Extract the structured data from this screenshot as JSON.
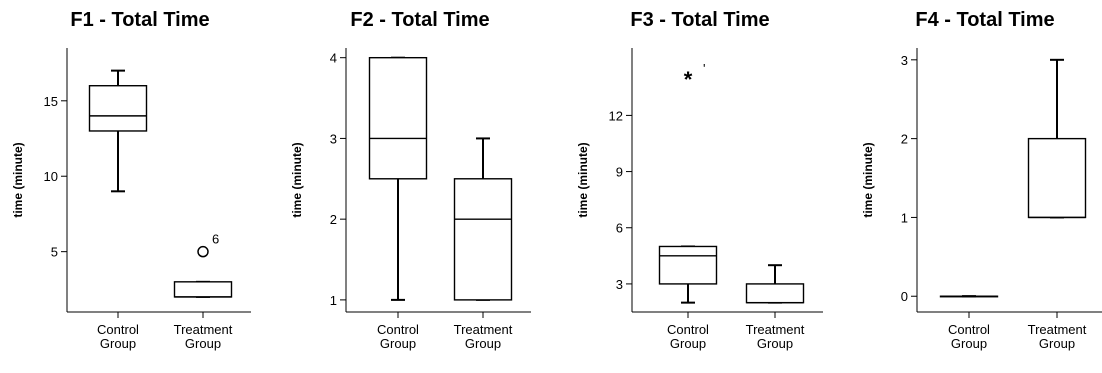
{
  "chart_data": [
    {
      "type": "box",
      "title": "F1 - Total Time",
      "ylabel": "time (minute)",
      "categories": [
        "Control Group",
        "Treatment Group"
      ],
      "ylim": [
        1,
        18.5
      ],
      "yticks": [
        5,
        10,
        15
      ],
      "boxes": [
        {
          "category": "Control Group",
          "min": 9,
          "q1": 13,
          "median": 14,
          "q3": 16,
          "max": 17,
          "outliers": []
        },
        {
          "category": "Treatment Group",
          "min": 2,
          "q1": 2,
          "median": 2,
          "q3": 3,
          "max": 3,
          "outliers": [
            {
              "value": 5,
              "marker": "circle",
              "label": "6"
            }
          ]
        }
      ]
    },
    {
      "type": "box",
      "title": "F2 - Total Time",
      "ylabel": "time (minute)",
      "categories": [
        "Control Group",
        "Treatment Group"
      ],
      "ylim": [
        0.85,
        4.12
      ],
      "yticks": [
        1,
        2,
        3,
        4
      ],
      "boxes": [
        {
          "category": "Control Group",
          "min": 1,
          "q1": 2.5,
          "median": 3,
          "q3": 4,
          "max": 4,
          "outliers": []
        },
        {
          "category": "Treatment Group",
          "min": 1,
          "q1": 1,
          "median": 2,
          "q3": 2.5,
          "max": 3,
          "outliers": []
        }
      ]
    },
    {
      "type": "box",
      "title": "F3 - Total Time",
      "ylabel": "time (minute)",
      "categories": [
        "Control Group",
        "Treatment Group"
      ],
      "ylim": [
        1.5,
        15.6
      ],
      "yticks": [
        3,
        6,
        9,
        12
      ],
      "boxes": [
        {
          "category": "Control Group",
          "min": 2,
          "q1": 3,
          "median": 4.5,
          "q3": 5,
          "max": 5,
          "outliers": [
            {
              "value": 14,
              "marker": "star",
              "label": "'"
            }
          ]
        },
        {
          "category": "Treatment Group",
          "min": 2,
          "q1": 2,
          "median": 2,
          "q3": 3,
          "max": 4,
          "outliers": []
        }
      ]
    },
    {
      "type": "box",
      "title": "F4 - Total Time",
      "ylabel": "time (minute)",
      "categories": [
        "Control Group",
        "Treatment Group"
      ],
      "ylim": [
        -0.2,
        3.15
      ],
      "yticks": [
        0,
        1,
        2,
        3
      ],
      "boxes": [
        {
          "category": "Control Group",
          "min": 0,
          "q1": 0,
          "median": 0,
          "q3": 0,
          "max": 0,
          "outliers": []
        },
        {
          "category": "Treatment Group",
          "min": 1,
          "q1": 1,
          "median": 1,
          "q3": 2,
          "max": 3,
          "outliers": []
        }
      ]
    }
  ]
}
